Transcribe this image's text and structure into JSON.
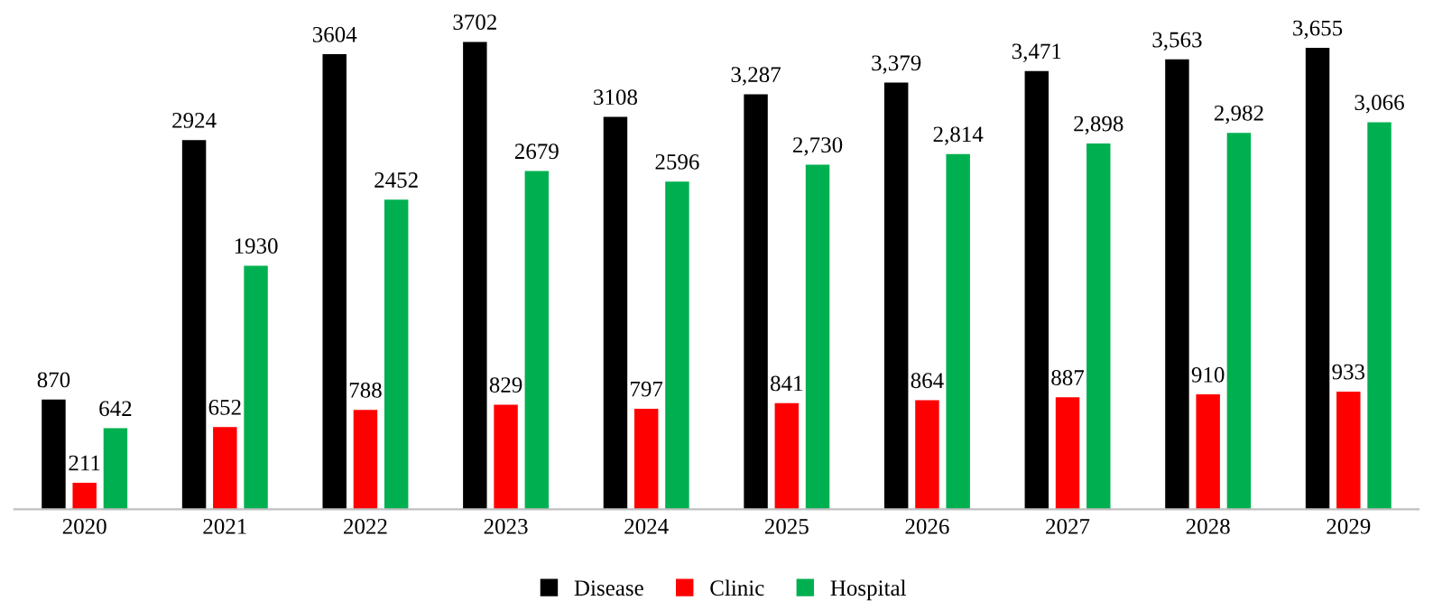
{
  "chart_data": {
    "type": "bar",
    "categories": [
      "2020",
      "2021",
      "2022",
      "2023",
      "2024",
      "2025",
      "2026",
      "2027",
      "2028",
      "2029"
    ],
    "series": [
      {
        "name": "Disease",
        "color": "#000000",
        "values": [
          870,
          2924,
          3604,
          3702,
          3108,
          3287,
          3379,
          3471,
          3563,
          3655
        ],
        "value_labels": [
          "870",
          "2924",
          "3604",
          "3702",
          "3108",
          "3,287",
          "3,379",
          "3,471",
          "3,563",
          "3,655"
        ]
      },
      {
        "name": "Clinic",
        "color": "#ff0000",
        "values": [
          211,
          652,
          788,
          829,
          797,
          841,
          864,
          887,
          910,
          933
        ],
        "value_labels": [
          "211",
          "652",
          "788",
          "829",
          "797",
          "841",
          "864",
          "887",
          "910",
          "933"
        ]
      },
      {
        "name": "Hospital",
        "color": "#00b050",
        "values": [
          642,
          1930,
          2452,
          2679,
          2596,
          2730,
          2814,
          2898,
          2982,
          3066
        ],
        "value_labels": [
          "642",
          "1930",
          "2452",
          "2679",
          "2596",
          "2,730",
          "2,814",
          "2,898",
          "2,982",
          "3,066"
        ]
      }
    ],
    "tick_labels": "x",
    "grid": false,
    "legend": "bottom"
  }
}
